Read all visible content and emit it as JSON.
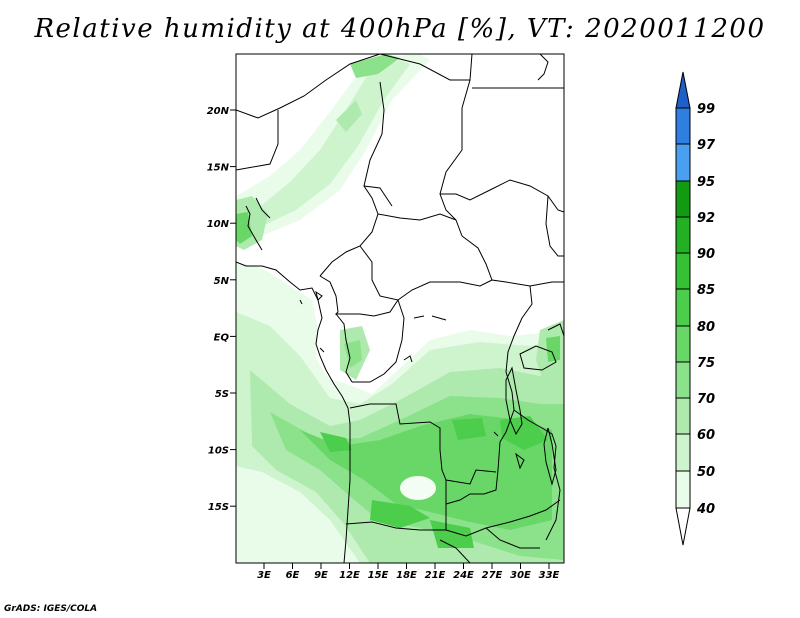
{
  "title": "Relative humidity at 400hPa [%], VT: 2020011200",
  "credit": "GrADS: IGES/COLA",
  "map": {
    "lat_labels": [
      "20N",
      "15N",
      "10N",
      "5N",
      "EQ",
      "5S",
      "10S",
      "15S"
    ],
    "lon_labels": [
      "3E",
      "6E",
      "9E",
      "12E",
      "15E",
      "18E",
      "21E",
      "24E",
      "27E",
      "30E",
      "33E"
    ]
  },
  "colorbar": {
    "levels": [
      "99",
      "97",
      "95",
      "92",
      "90",
      "85",
      "80",
      "75",
      "70",
      "60",
      "50",
      "40"
    ],
    "colors": {
      "above_99": "#1f5fc8",
      "97_99": "#2e7fe0",
      "95_97": "#4aa0f0",
      "92_95": "#139a13",
      "90_92": "#23b023",
      "85_90": "#35c035",
      "80_85": "#4ccd4c",
      "75_80": "#68d768",
      "70_75": "#8be28b",
      "60_70": "#aeeaae",
      "50_60": "#cdf4cd",
      "40_50": "#e9fbe9",
      "below_40": "#ffffff"
    }
  }
}
